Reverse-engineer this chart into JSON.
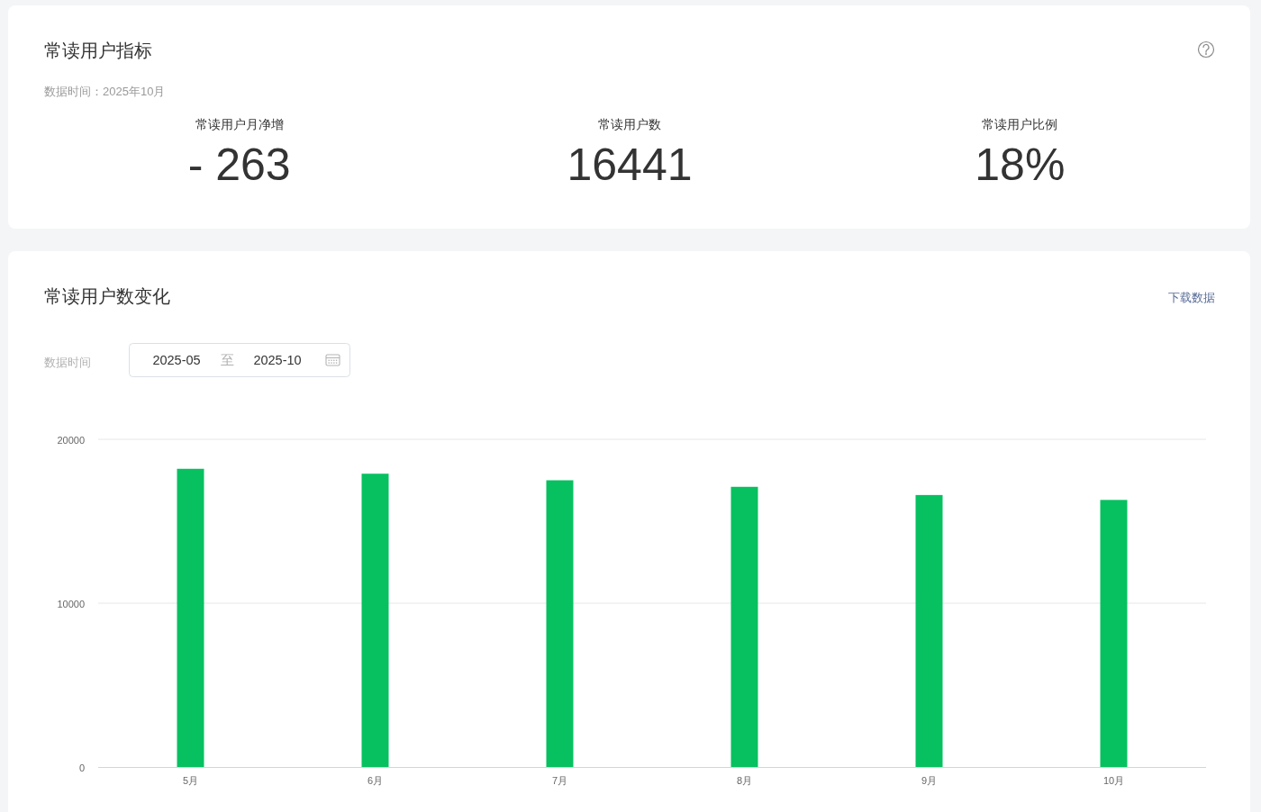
{
  "chart_data": [
    {
      "type": "other",
      "title": "常读用户指标",
      "subtitle": "数据时间：2025年10月",
      "categories": [
        "常读用户月净增",
        "常读用户数",
        "常读用户比例"
      ],
      "annotations": [
        "- 263",
        "16441",
        "18%"
      ]
    },
    {
      "type": "bar",
      "title": "常读用户数变化",
      "annotations": [
        "下载数据",
        "数据时间",
        "2025-05",
        "至",
        "2025-10"
      ],
      "categories": [
        "5月",
        "6月",
        "7月",
        "8月",
        "9月",
        "10月"
      ],
      "values": [
        18200,
        17900,
        17500,
        17100,
        16600,
        16300
      ],
      "color": "#07c160",
      "ylim": [
        0,
        20000
      ],
      "yticks": [
        0,
        10000,
        20000
      ],
      "grid": "y"
    }
  ]
}
